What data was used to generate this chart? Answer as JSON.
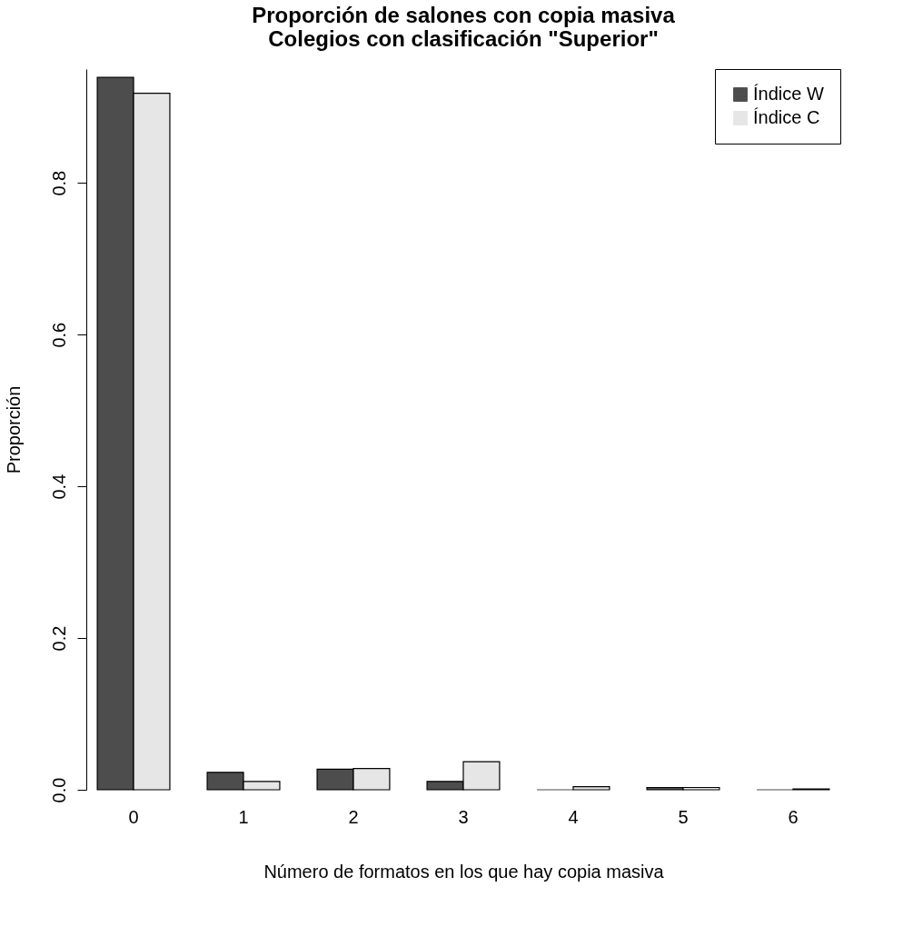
{
  "chart_data": {
    "type": "bar",
    "title": "Proporción de salones con copia masiva\nColegios con clasificación \"Superior\"",
    "xlabel": "Número de formatos en los que hay copia masiva",
    "ylabel": "Proporción",
    "categories": [
      "0",
      "1",
      "2",
      "3",
      "4",
      "5",
      "6"
    ],
    "series": [
      {
        "name": "Índice W",
        "color": "#4d4d4d",
        "values": [
          0.939,
          0.023,
          0.027,
          0.011,
          0.0,
          0.003,
          0.0
        ]
      },
      {
        "name": "Índice C",
        "color": "#e6e6e6",
        "values": [
          0.918,
          0.011,
          0.028,
          0.037,
          0.004,
          0.003,
          0.001
        ]
      }
    ],
    "ylim": [
      0,
      0.95
    ],
    "yticks": [
      {
        "value": 0,
        "label": "0.0"
      },
      {
        "value": 0.2,
        "label": "0.2"
      },
      {
        "value": 0.4,
        "label": "0.4"
      },
      {
        "value": 0.6,
        "label": "0.6"
      },
      {
        "value": 0.8,
        "label": "0.8"
      }
    ],
    "grid": false,
    "legend": "top right"
  }
}
